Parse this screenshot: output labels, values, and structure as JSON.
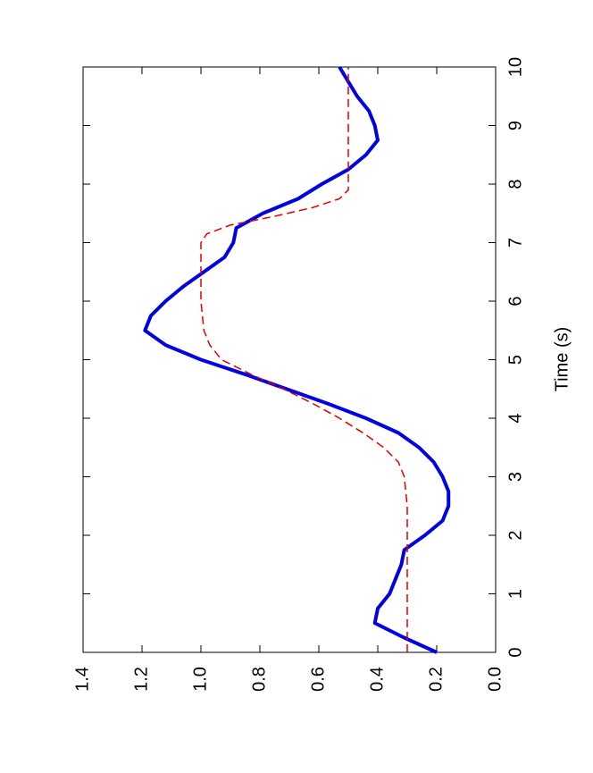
{
  "chart_data": {
    "type": "line",
    "xlabel": "Time (s)",
    "xlim": [
      0,
      10
    ],
    "xticks": [
      0,
      1,
      2,
      3,
      4,
      5,
      6,
      7,
      8,
      9,
      10
    ],
    "ylim": [
      0,
      1.4
    ],
    "yticks": [
      {
        "value": 0,
        "label": "0.0"
      },
      {
        "value": 0.2,
        "label": "0.2"
      },
      {
        "value": 0.4,
        "label": "0.4"
      },
      {
        "value": 0.6,
        "label": "0.6"
      },
      {
        "value": 0.8,
        "label": "0.8"
      },
      {
        "value": 1,
        "label": "1.0"
      },
      {
        "value": 1.2,
        "label": "1.2"
      },
      {
        "value": 1.4,
        "label": "1.4"
      }
    ],
    "series": [
      {
        "color": "#0000e0",
        "dash": false,
        "x": [
          0,
          0.25,
          0.5,
          0.75,
          1,
          1.25,
          1.5,
          1.75,
          2,
          2.25,
          2.5,
          2.75,
          3,
          3.25,
          3.5,
          3.75,
          4,
          4.25,
          4.5,
          4.75,
          5,
          5.25,
          5.5,
          5.75,
          6,
          6.25,
          6.5,
          6.75,
          7,
          7.25,
          7.5,
          7.75,
          8,
          8.25,
          8.5,
          8.75,
          9,
          9.25,
          9.5,
          9.75,
          10
        ],
        "values": [
          0.2,
          0.31,
          0.41,
          0.4,
          0.36,
          0.34,
          0.32,
          0.31,
          0.24,
          0.18,
          0.16,
          0.16,
          0.18,
          0.21,
          0.26,
          0.33,
          0.44,
          0.57,
          0.71,
          0.85,
          1.0,
          1.12,
          1.19,
          1.17,
          1.12,
          1.06,
          0.99,
          0.92,
          0.89,
          0.88,
          0.79,
          0.67,
          0.59,
          0.5,
          0.44,
          0.4,
          0.41,
          0.43,
          0.47,
          0.5,
          0.53
        ]
      },
      {
        "color": "#e00000",
        "dash": true,
        "x": [
          0,
          2.5,
          3,
          3.25,
          3.5,
          3.75,
          4,
          4.25,
          4.5,
          4.75,
          5,
          5.25,
          5.5,
          6,
          7,
          7.15,
          7.3,
          7.45,
          7.6,
          7.75,
          7.9,
          10
        ],
        "values": [
          0.3,
          0.3,
          0.31,
          0.33,
          0.38,
          0.45,
          0.53,
          0.62,
          0.72,
          0.83,
          0.93,
          0.97,
          0.99,
          1.0,
          1.0,
          0.98,
          0.9,
          0.75,
          0.62,
          0.53,
          0.5,
          0.5
        ]
      }
    ]
  }
}
